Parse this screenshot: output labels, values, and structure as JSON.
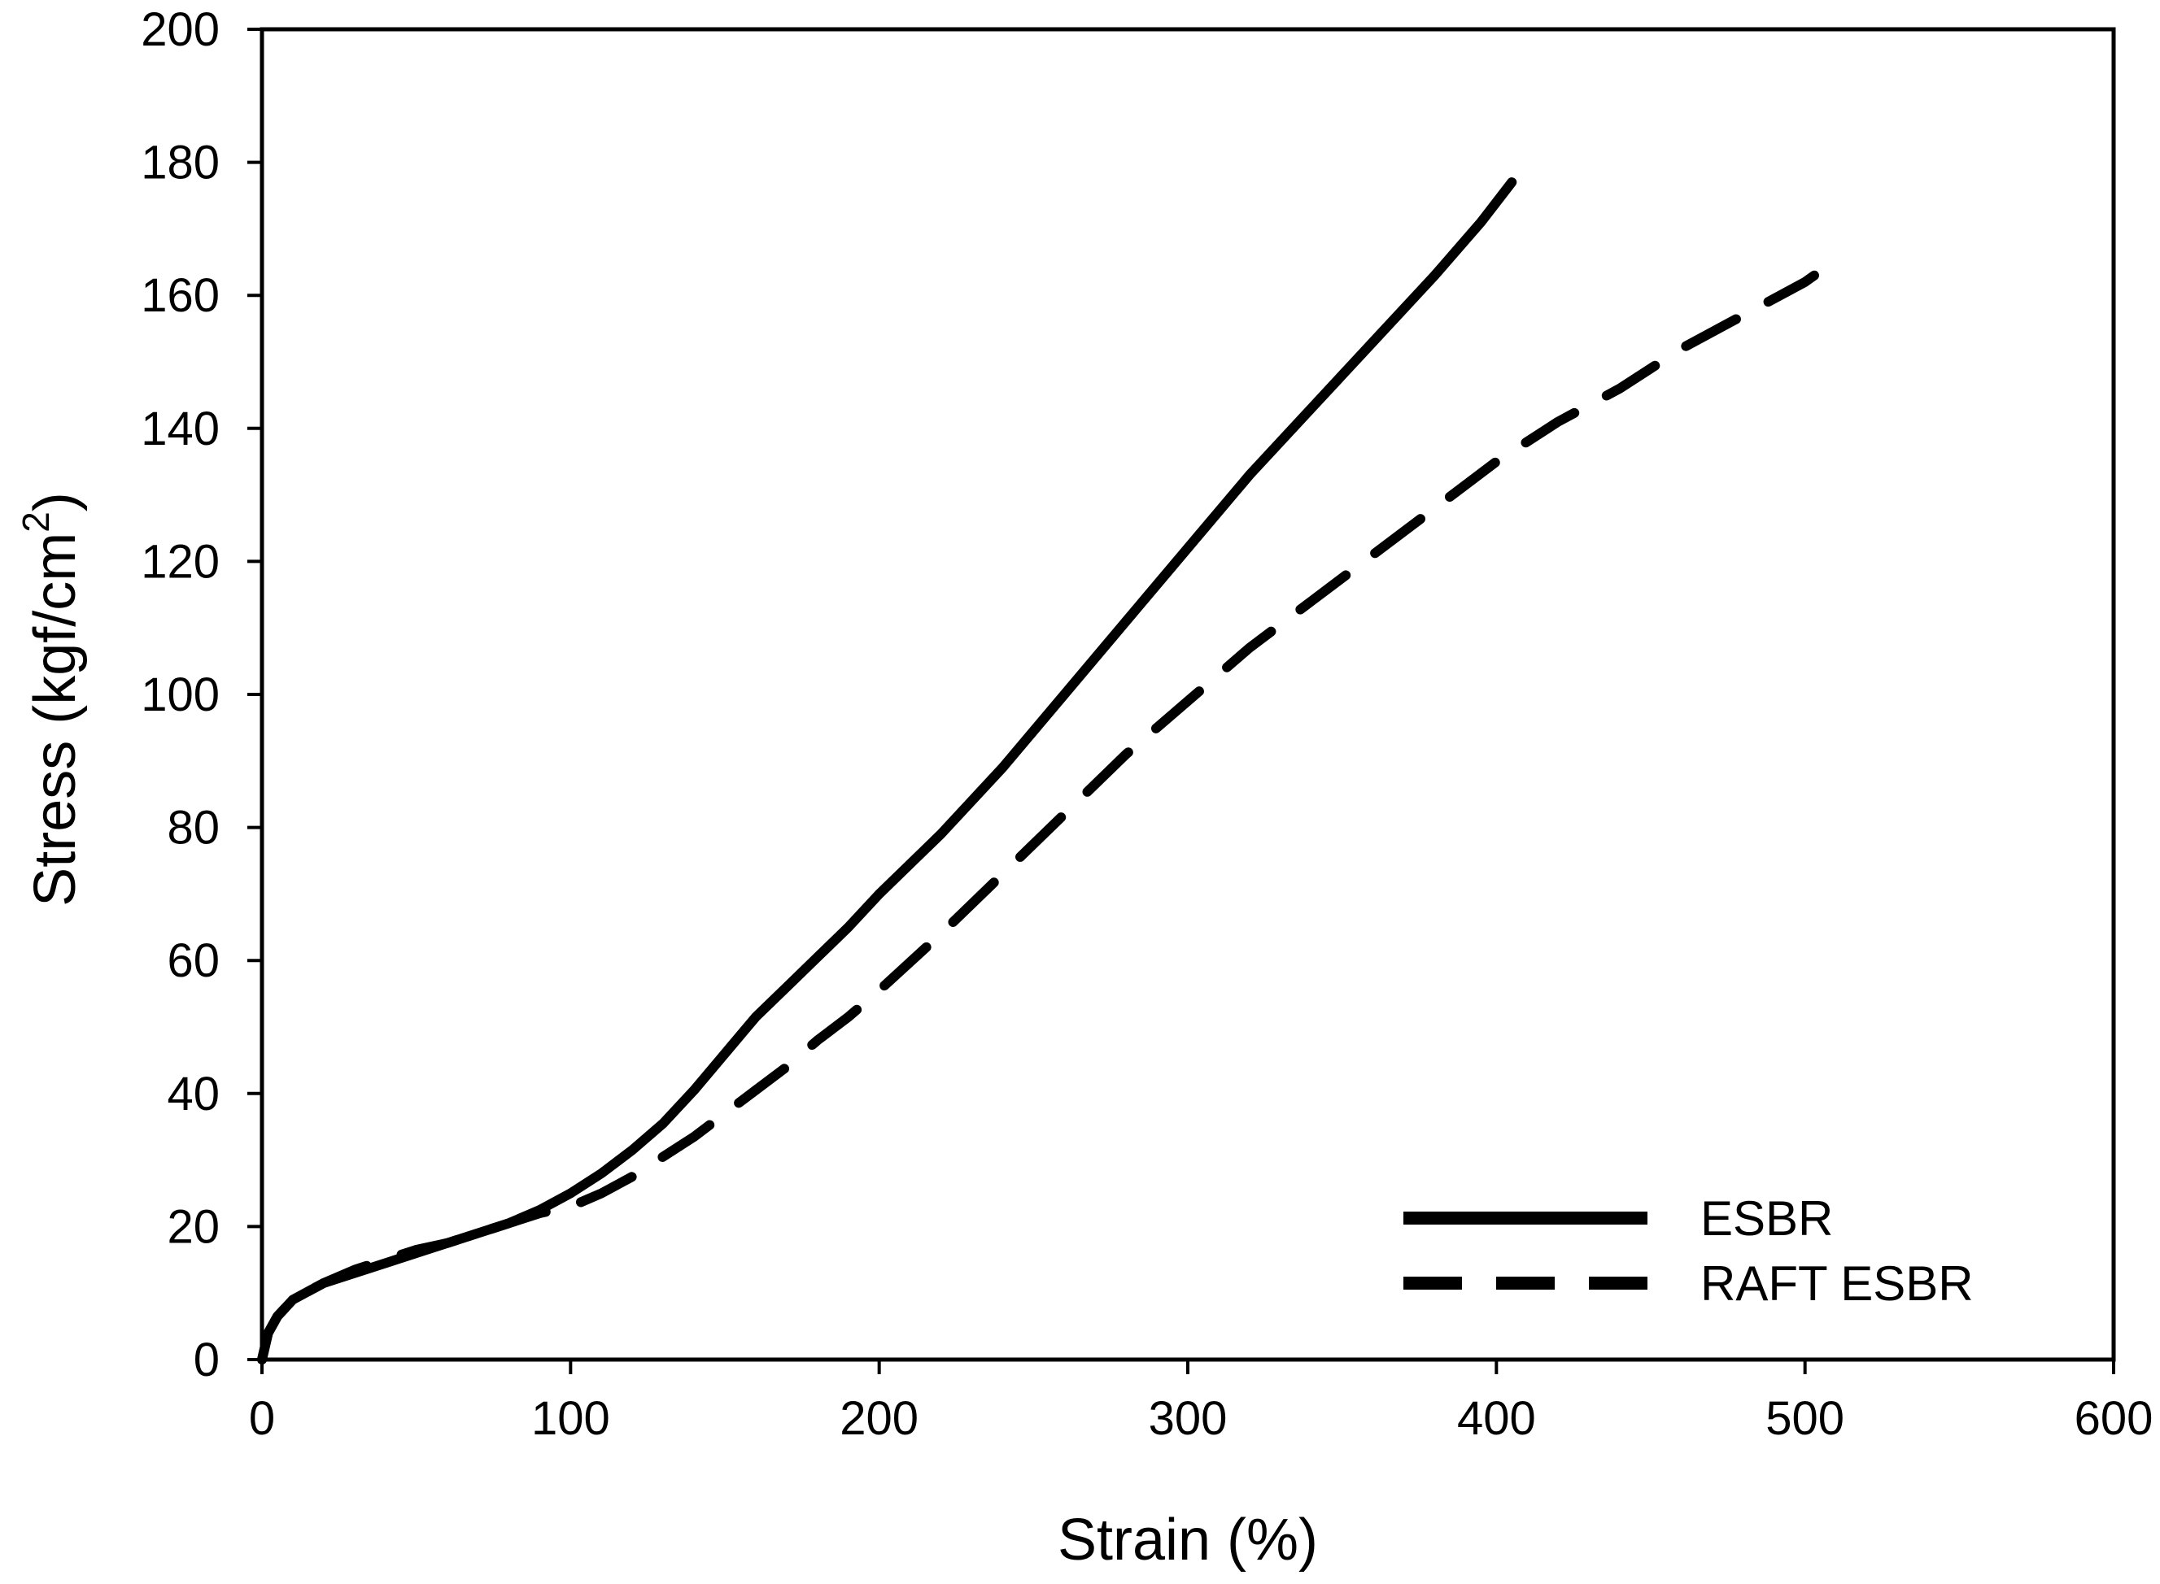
{
  "chart_data": {
    "type": "line",
    "title": "",
    "xlabel": "Strain (%)",
    "ylabel_main": "Stress (kgf/cm",
    "ylabel_sup": "2",
    "ylabel_close": ")",
    "xlim": [
      0,
      600
    ],
    "ylim": [
      0,
      200
    ],
    "xticks": [
      0,
      100,
      200,
      300,
      400,
      500,
      600
    ],
    "yticks": [
      0,
      20,
      40,
      60,
      80,
      100,
      120,
      140,
      160,
      180,
      200
    ],
    "grid": false,
    "legend_position": "bottom-right",
    "colors": {
      "series": "#000000",
      "axis": "#000000",
      "background": "#ffffff"
    },
    "series": [
      {
        "name": "ESBR",
        "style": "solid",
        "points": [
          [
            0,
            0
          ],
          [
            2,
            4
          ],
          [
            5,
            6.5
          ],
          [
            10,
            9
          ],
          [
            20,
            11.5
          ],
          [
            30,
            13
          ],
          [
            40,
            14.5
          ],
          [
            50,
            16
          ],
          [
            60,
            17.5
          ],
          [
            70,
            19
          ],
          [
            80,
            20.5
          ],
          [
            90,
            22.5
          ],
          [
            100,
            25
          ],
          [
            110,
            28
          ],
          [
            120,
            31.5
          ],
          [
            130,
            35.5
          ],
          [
            140,
            40.5
          ],
          [
            150,
            46
          ],
          [
            160,
            51.5
          ],
          [
            170,
            56
          ],
          [
            180,
            60.5
          ],
          [
            190,
            65
          ],
          [
            200,
            70
          ],
          [
            220,
            79
          ],
          [
            240,
            89
          ],
          [
            260,
            100
          ],
          [
            280,
            111
          ],
          [
            300,
            122
          ],
          [
            320,
            133
          ],
          [
            340,
            143
          ],
          [
            360,
            153
          ],
          [
            380,
            163
          ],
          [
            395,
            171
          ],
          [
            405,
            177
          ]
        ]
      },
      {
        "name": "RAFT ESBR",
        "style": "dashed",
        "points": [
          [
            0,
            0
          ],
          [
            2,
            4
          ],
          [
            5,
            6.5
          ],
          [
            10,
            9
          ],
          [
            20,
            11.5
          ],
          [
            30,
            13.5
          ],
          [
            40,
            15
          ],
          [
            50,
            16.5
          ],
          [
            60,
            17.5
          ],
          [
            70,
            19
          ],
          [
            80,
            20.5
          ],
          [
            90,
            22
          ],
          [
            100,
            23
          ],
          [
            110,
            25
          ],
          [
            120,
            27.5
          ],
          [
            130,
            30.5
          ],
          [
            140,
            33.5
          ],
          [
            150,
            37
          ],
          [
            160,
            40.5
          ],
          [
            170,
            44
          ],
          [
            180,
            48
          ],
          [
            190,
            51.5
          ],
          [
            200,
            55.5
          ],
          [
            220,
            64
          ],
          [
            240,
            73
          ],
          [
            260,
            82
          ],
          [
            280,
            91
          ],
          [
            300,
            99
          ],
          [
            320,
            107
          ],
          [
            340,
            114
          ],
          [
            360,
            121
          ],
          [
            380,
            128
          ],
          [
            400,
            135
          ],
          [
            420,
            141
          ],
          [
            440,
            146
          ],
          [
            460,
            152
          ],
          [
            480,
            157
          ],
          [
            500,
            162
          ],
          [
            503,
            163
          ]
        ]
      }
    ]
  }
}
